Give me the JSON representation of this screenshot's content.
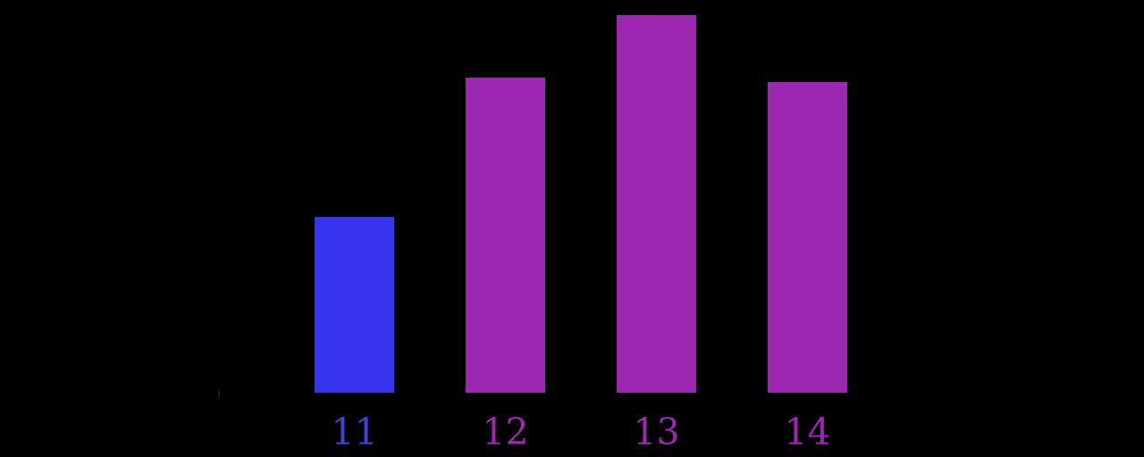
{
  "background_color": "#000000",
  "chart_data": {
    "type": "bar",
    "title": "",
    "xlabel": "",
    "ylabel": "",
    "categories": [
      "11",
      "12",
      "13",
      "14"
    ],
    "values": [
      197,
      353,
      423,
      348
    ],
    "value_scale_note": "no y-axis rendered; values are bar heights in screen pixels from shared baseline",
    "ylim": [
      0,
      440
    ],
    "grid": false,
    "legend": null,
    "bar_colors": [
      "#3734f0",
      "#9c28b1",
      "#9c28b1",
      "#9c28b1"
    ],
    "tick_label_colors": [
      "#4340d8",
      "#9c28b1",
      "#9c28b1",
      "#9c28b1"
    ],
    "axis_tick_color": "#17171f"
  }
}
